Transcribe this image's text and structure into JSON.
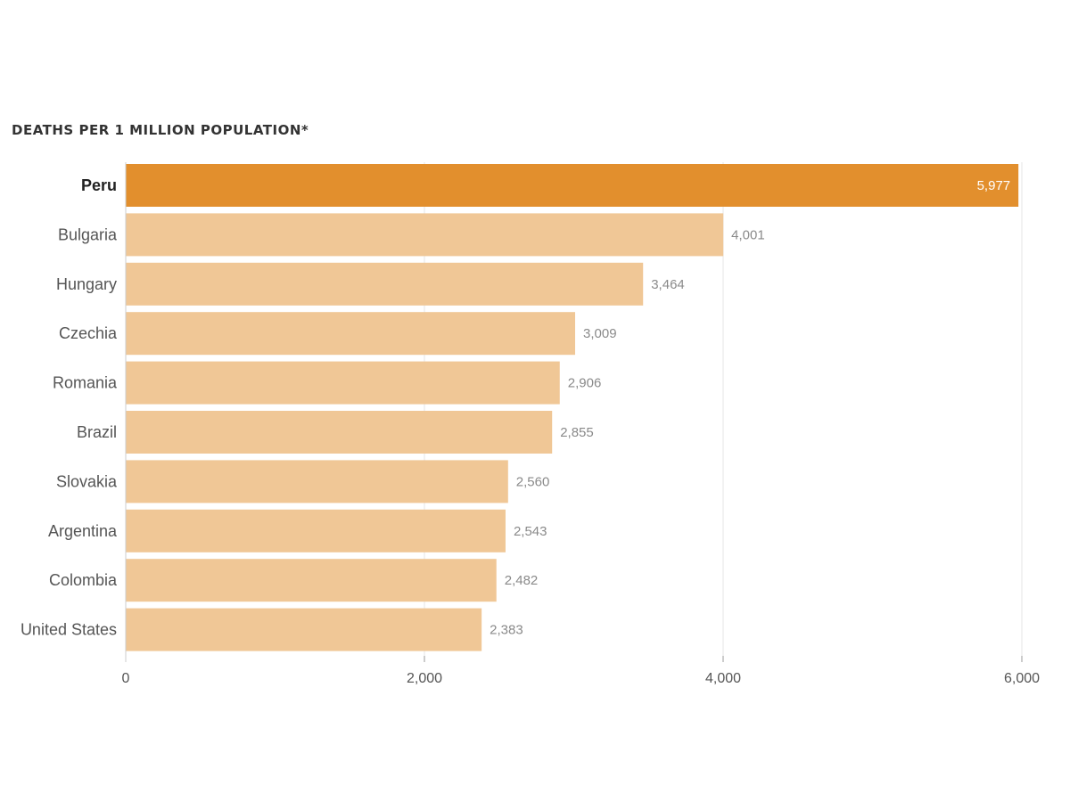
{
  "chart_data": {
    "type": "bar",
    "orientation": "horizontal",
    "title": "DEATHS PER 1 MILLION POPULATION*",
    "categories": [
      "Peru",
      "Bulgaria",
      "Hungary",
      "Czechia",
      "Romania",
      "Brazil",
      "Slovakia",
      "Argentina",
      "Colombia",
      "United States"
    ],
    "values": [
      5977,
      4001,
      3464,
      3009,
      2906,
      2855,
      2560,
      2543,
      2482,
      2383
    ],
    "value_labels": [
      "5,977",
      "4,001",
      "3,464",
      "3,009",
      "2,906",
      "2,855",
      "2,560",
      "2,543",
      "2,482",
      "2,383"
    ],
    "highlight": "Peru",
    "xlim": [
      0,
      6000
    ],
    "x_ticks": [
      0,
      2000,
      4000,
      6000
    ],
    "x_tick_labels": [
      "0",
      "2,000",
      "4,000",
      "6,000"
    ],
    "grid": true,
    "legend": "none",
    "colors": {
      "highlight": "#e28f2d",
      "bar": "#f0c796",
      "grid": "#e6e6e6"
    }
  }
}
